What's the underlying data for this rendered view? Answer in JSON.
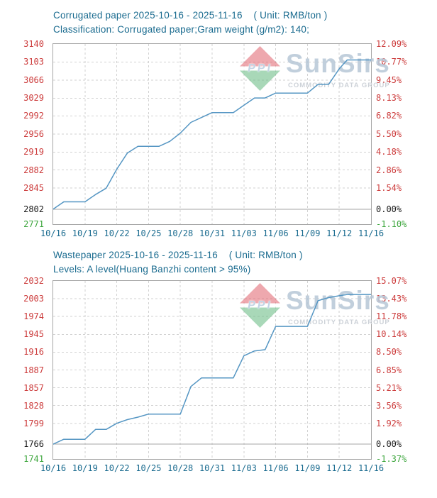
{
  "watermark": {
    "logo_text": "PPI",
    "brand": "SunSirs",
    "tagline": "COMMODITY DATA GROUP"
  },
  "colors": {
    "title": "#1A6B8F",
    "axis_red": "#CC3B3B",
    "axis_black": "#1A1A1A",
    "axis_green": "#3DA63D",
    "x_label": "#1A6B8F",
    "line": "#5596C3",
    "grid_dashed": "#D2D2D2",
    "plot_border": "#A6A6A6",
    "zero_line": "#A6A6A6"
  },
  "charts": [
    {
      "title": "Corrugated paper 2025-10-16 - 2025-11-16    ( Unit: RMB/ton )",
      "subtitle": "Classification: Corrugated paper;Gram weight (g/m2): 140;",
      "chart_data": {
        "type": "line",
        "title": "Corrugated paper 2025-10-16 - 2025-11-16",
        "unit": "RMB/ton",
        "series_name": "Corrugated paper price",
        "base_value": 2802,
        "x": [
          "10/16",
          "10/17",
          "10/18",
          "10/19",
          "10/20",
          "10/21",
          "10/22",
          "10/23",
          "10/24",
          "10/25",
          "10/26",
          "10/27",
          "10/28",
          "10/29",
          "10/30",
          "10/31",
          "11/01",
          "11/02",
          "11/03",
          "11/04",
          "11/05",
          "11/06",
          "11/07",
          "11/08",
          "11/09",
          "11/10",
          "11/11",
          "11/12",
          "11/13",
          "11/14",
          "11/15",
          "11/16"
        ],
        "values": [
          2802,
          2817,
          2817,
          2817,
          2832,
          2845,
          2884,
          2917,
          2931,
          2931,
          2931,
          2941,
          2958,
          2980,
          2990,
          3000,
          3000,
          3000,
          3015,
          3030,
          3030,
          3040,
          3040,
          3040,
          3040,
          3058,
          3058,
          3090,
          3108,
          3108,
          3108,
          3108
        ],
        "x_tick_labels": [
          "10/16",
          "10/19",
          "10/22",
          "10/25",
          "10/28",
          "10/31",
          "11/03",
          "11/06",
          "11/09",
          "11/12",
          "11/16"
        ],
        "x_tick_day_index": [
          0,
          3,
          6,
          9,
          12,
          15,
          18,
          21,
          24,
          27,
          31
        ],
        "y_axis_rows": [
          {
            "price_label": "3140",
            "pct_label": "12.09%",
            "pct": 12.09,
            "color": "red"
          },
          {
            "price_label": "3103",
            "pct_label": "10.77%",
            "pct": 10.77,
            "color": "red"
          },
          {
            "price_label": "3066",
            "pct_label": "9.45%",
            "pct": 9.45,
            "color": "red"
          },
          {
            "price_label": "3029",
            "pct_label": "8.13%",
            "pct": 8.13,
            "color": "red"
          },
          {
            "price_label": "2992",
            "pct_label": "6.82%",
            "pct": 6.82,
            "color": "red"
          },
          {
            "price_label": "2956",
            "pct_label": "5.50%",
            "pct": 5.5,
            "color": "red"
          },
          {
            "price_label": "2919",
            "pct_label": "4.18%",
            "pct": 4.18,
            "color": "red"
          },
          {
            "price_label": "2882",
            "pct_label": "2.86%",
            "pct": 2.86,
            "color": "red"
          },
          {
            "price_label": "2845",
            "pct_label": "1.54%",
            "pct": 1.54,
            "color": "red"
          },
          {
            "price_label": "2802",
            "pct_label": "0.00%",
            "pct": 0.0,
            "color": "black"
          },
          {
            "price_label": "2771",
            "pct_label": "-1.10%",
            "pct": -1.1,
            "color": "green"
          }
        ],
        "ylim_pct": [
          -1.1,
          12.09
        ],
        "grid": true,
        "legend": false,
        "line_color": "#5596C3"
      }
    },
    {
      "title": "Wastepaper 2025-10-16 - 2025-11-16    ( Unit: RMB/ton )",
      "subtitle": "Levels: A level(Huang Banzhi content > 95%)",
      "chart_data": {
        "type": "line",
        "title": "Wastepaper 2025-10-16 - 2025-11-16",
        "unit": "RMB/ton",
        "series_name": "Wastepaper price",
        "base_value": 1766,
        "x": [
          "10/16",
          "10/17",
          "10/18",
          "10/19",
          "10/20",
          "10/21",
          "10/22",
          "10/23",
          "10/24",
          "10/25",
          "10/26",
          "10/27",
          "10/28",
          "10/29",
          "10/30",
          "10/31",
          "11/01",
          "11/02",
          "11/03",
          "11/04",
          "11/05",
          "11/06",
          "11/07",
          "11/08",
          "11/09",
          "11/10",
          "11/11",
          "11/12",
          "11/13",
          "11/14",
          "11/15",
          "11/16"
        ],
        "values": [
          1766,
          1774,
          1774,
          1774,
          1790,
          1790,
          1800,
          1806,
          1810,
          1815,
          1815,
          1815,
          1815,
          1860,
          1874,
          1874,
          1874,
          1874,
          1910,
          1918,
          1920,
          1958,
          1958,
          1958,
          1958,
          2000,
          2005,
          2008,
          2010,
          2010,
          2010,
          2010
        ],
        "x_tick_labels": [
          "10/16",
          "10/19",
          "10/22",
          "10/25",
          "10/28",
          "10/31",
          "11/03",
          "11/06",
          "11/09",
          "11/12",
          "11/16"
        ],
        "x_tick_day_index": [
          0,
          3,
          6,
          9,
          12,
          15,
          18,
          21,
          24,
          27,
          31
        ],
        "y_axis_rows": [
          {
            "price_label": "2032",
            "pct_label": "15.07%",
            "pct": 15.07,
            "color": "red"
          },
          {
            "price_label": "2003",
            "pct_label": "13.43%",
            "pct": 13.43,
            "color": "red"
          },
          {
            "price_label": "1974",
            "pct_label": "11.78%",
            "pct": 11.78,
            "color": "red"
          },
          {
            "price_label": "1945",
            "pct_label": "10.14%",
            "pct": 10.14,
            "color": "red"
          },
          {
            "price_label": "1916",
            "pct_label": "8.50%",
            "pct": 8.5,
            "color": "red"
          },
          {
            "price_label": "1887",
            "pct_label": "6.85%",
            "pct": 6.85,
            "color": "red"
          },
          {
            "price_label": "1857",
            "pct_label": "5.21%",
            "pct": 5.21,
            "color": "red"
          },
          {
            "price_label": "1828",
            "pct_label": "3.56%",
            "pct": 3.56,
            "color": "red"
          },
          {
            "price_label": "1799",
            "pct_label": "1.92%",
            "pct": 1.92,
            "color": "red"
          },
          {
            "price_label": "1766",
            "pct_label": "0.00%",
            "pct": 0.0,
            "color": "black"
          },
          {
            "price_label": "1741",
            "pct_label": "-1.37%",
            "pct": -1.37,
            "color": "green"
          }
        ],
        "ylim_pct": [
          -1.37,
          15.07
        ],
        "grid": true,
        "legend": false,
        "line_color": "#5596C3"
      }
    }
  ]
}
